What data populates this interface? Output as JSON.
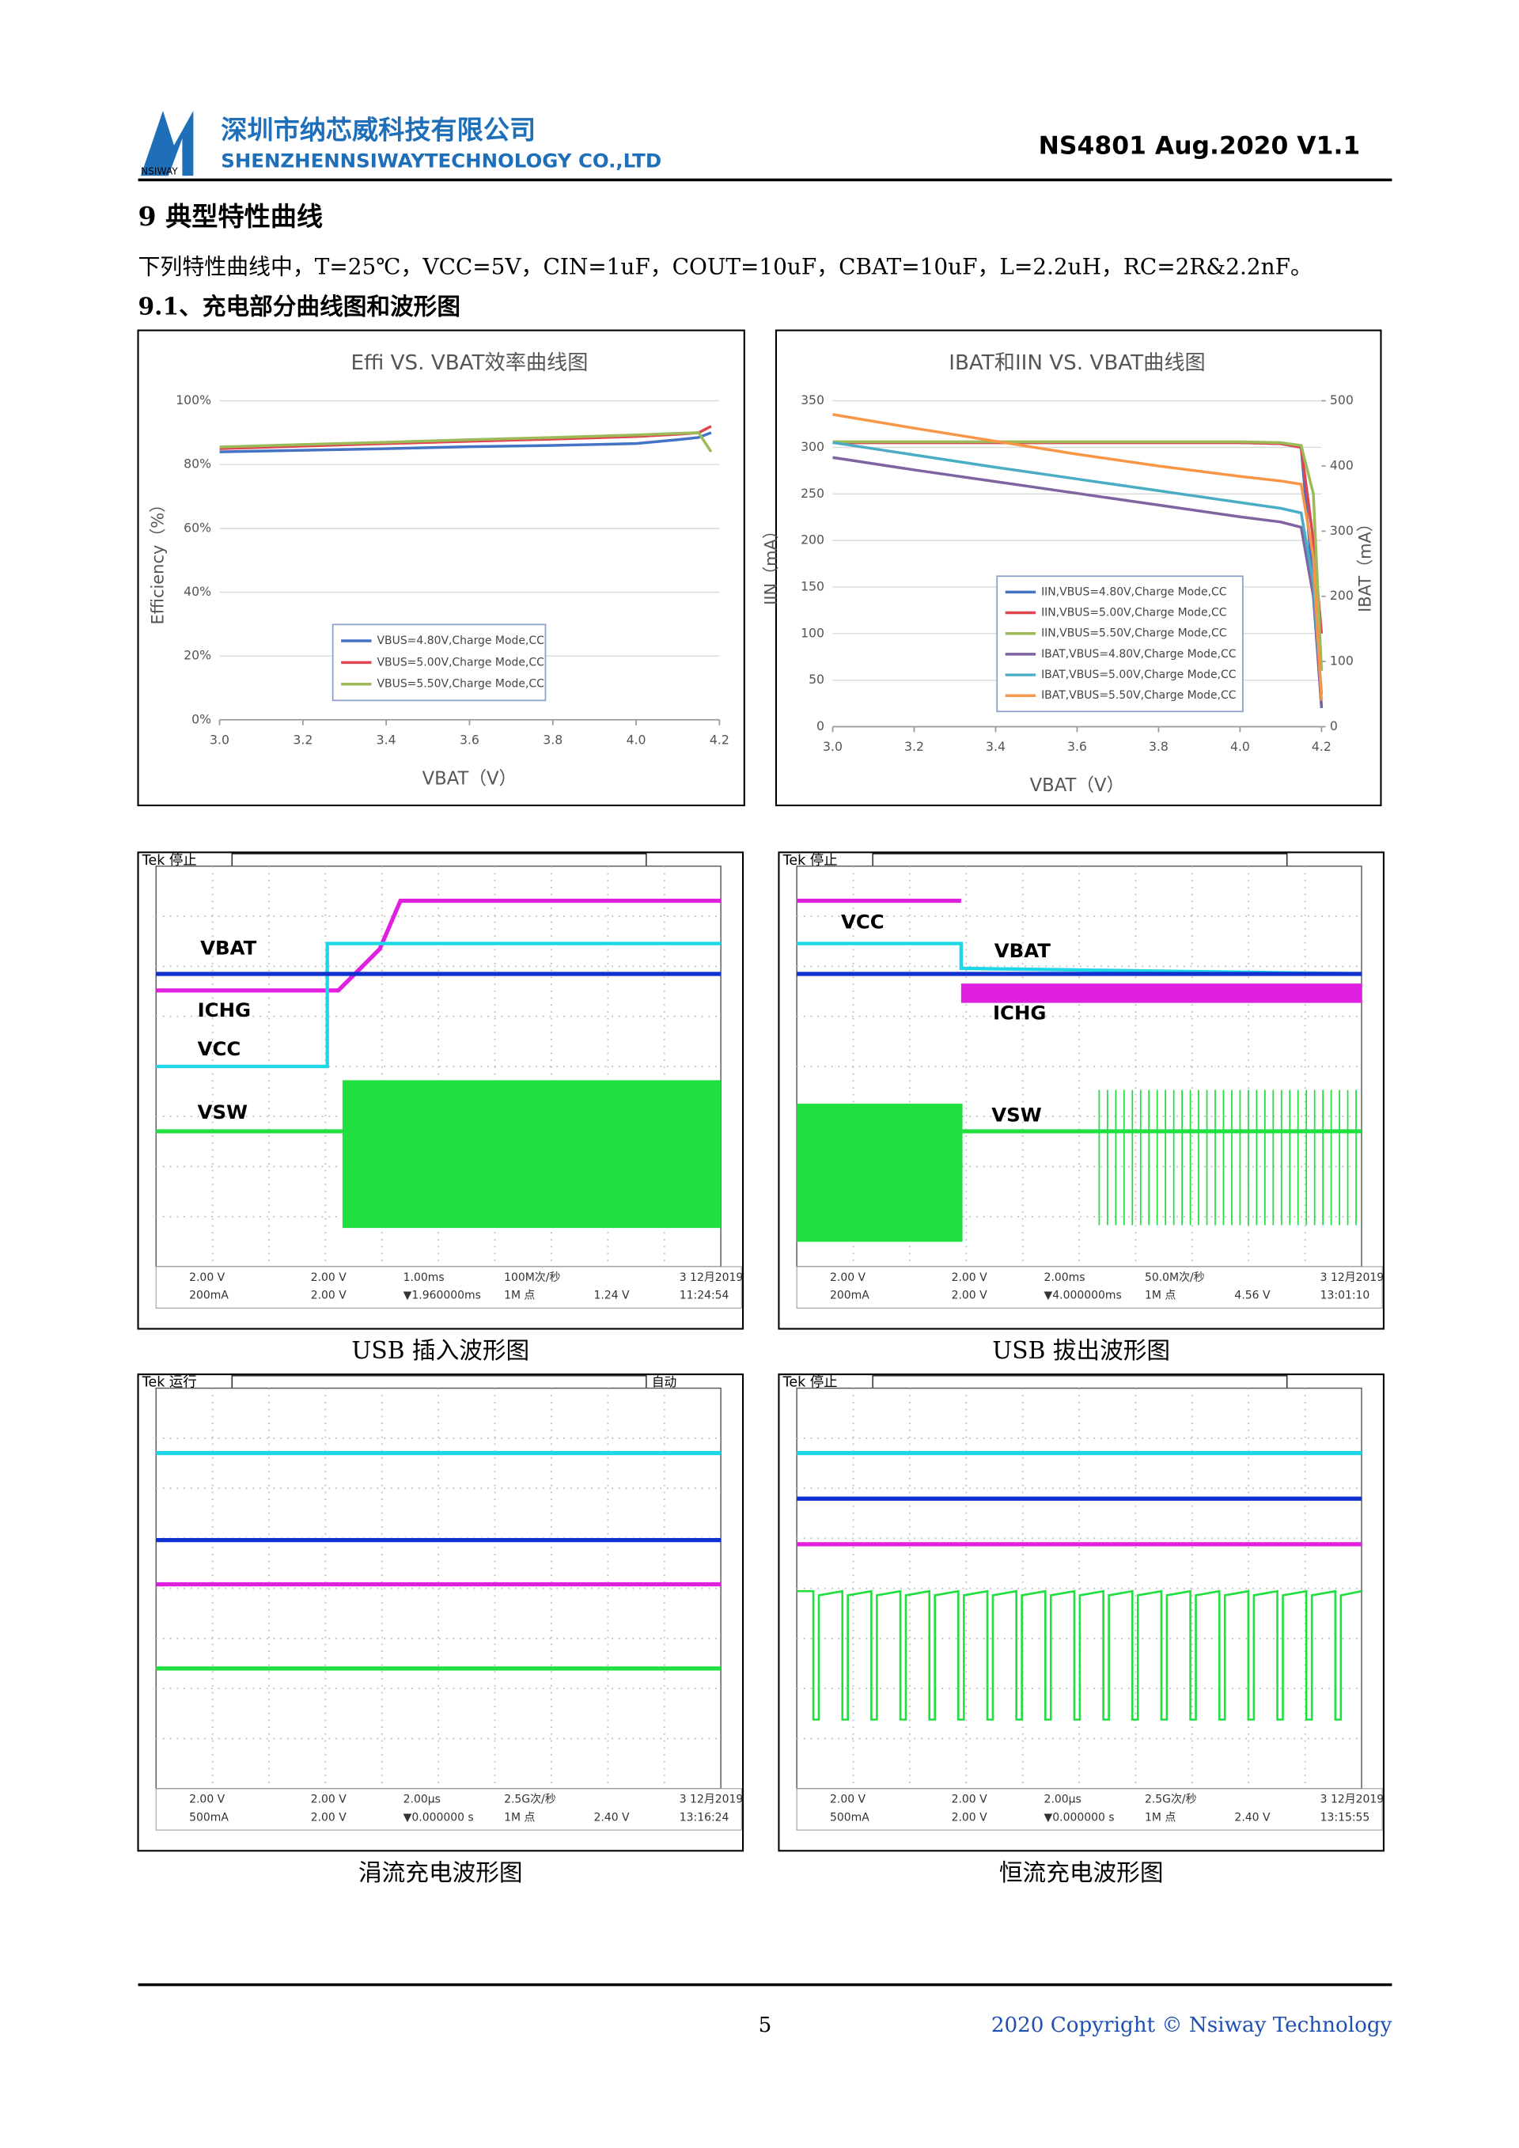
{
  "header": {
    "logo_text": "NSIWAY",
    "company_cn": "深圳市纳芯威科技有限公司",
    "company_en": "SHENZHENNSIWAYTECHNOLOGY CO.,LTD",
    "doc_id": "NS4801 Aug.2020 V1.1"
  },
  "section_title": "9  典型特性曲线",
  "conditions": "下列特性曲线中，T=25℃，VCC=5V，CIN=1uF，COUT=10uF，CBAT=10uF，L=2.2uH，RC=2R&2.2nF。",
  "subsection_title": "9.1、充电部分曲线图和波形图",
  "chart_data": [
    {
      "type": "line",
      "title": "Effi VS. VBAT效率曲线图",
      "x_label": "VBAT（V）",
      "y_label": "Efficiency（%）",
      "x": [
        3.0,
        3.2,
        3.4,
        3.6,
        3.8,
        4.0,
        4.1,
        4.15,
        4.18
      ],
      "xlim": [
        3.0,
        4.2
      ],
      "xticks": [
        {
          "value": 3,
          "label": "3.0"
        },
        3.2,
        3.4,
        3.6,
        3.8,
        {
          "value": 4,
          "label": "4.0"
        },
        4.2
      ],
      "ylim": [
        0,
        100
      ],
      "yticks": [
        {
          "value": 0,
          "label": "0%"
        },
        {
          "value": 20,
          "label": "20%"
        },
        {
          "value": 40,
          "label": "40%"
        },
        {
          "value": 60,
          "label": "60%"
        },
        {
          "value": 80,
          "label": "80%"
        },
        {
          "value": 100,
          "label": "100%"
        }
      ],
      "grid": true,
      "series": [
        {
          "name": "VBUS=4.80V,Charge Mode,CC",
          "color": "#4472c4",
          "values": [
            84,
            84.5,
            85,
            85.6,
            86,
            86.6,
            87.8,
            88.5,
            90
          ]
        },
        {
          "name": "VBUS=5.00V,Charge Mode,CC",
          "color": "#e0454f",
          "values": [
            85,
            85.8,
            86.6,
            87.3,
            88,
            88.8,
            89.5,
            90,
            92
          ]
        },
        {
          "name": "VBUS=5.50V,Charge Mode,CC",
          "color": "#9bbb59",
          "values": [
            85.5,
            86.3,
            87,
            87.8,
            88.5,
            89.3,
            89.8,
            90,
            84
          ]
        }
      ]
    },
    {
      "type": "line",
      "title": "IBAT和IIN VS. VBAT曲线图",
      "x_label": "VBAT（V）",
      "y_label": "IIN（mA）",
      "y2_label": "IBAT（mA）",
      "x": [
        3.0,
        3.2,
        3.4,
        3.6,
        3.8,
        4.0,
        4.1,
        4.15,
        4.18,
        4.2
      ],
      "xlim": [
        3.0,
        4.2
      ],
      "xticks": [
        {
          "value": 3,
          "label": "3.0"
        },
        3.2,
        3.4,
        3.6,
        3.8,
        {
          "value": 4,
          "label": "4.0"
        },
        4.2
      ],
      "ylim": [
        0,
        350
      ],
      "yticks": [
        0,
        50,
        100,
        150,
        200,
        250,
        300,
        350
      ],
      "y2lim": [
        0,
        500
      ],
      "y2ticks": [
        0,
        100,
        200,
        300,
        400,
        500
      ],
      "grid": true,
      "series": [
        {
          "name": "IIN,VBUS=4.80V,Charge Mode,CC",
          "color": "#4472c4",
          "values": [
            305,
            305,
            305,
            305,
            305,
            305,
            304,
            300,
            150,
            20
          ]
        },
        {
          "name": "IIN,VBUS=5.00V,Charge Mode,CC",
          "color": "#e0454f",
          "values": [
            305,
            305,
            305,
            305,
            305,
            305,
            304,
            300,
            200,
            100
          ]
        },
        {
          "name": "IIN,VBUS=5.50V,Charge Mode,CC",
          "color": "#9bbb59",
          "values": [
            306,
            306,
            306,
            306,
            306,
            306,
            305,
            302,
            250,
            60
          ]
        },
        {
          "name": "IBAT,VBUS=4.80V,Charge Mode,CC",
          "color": "#8064a2",
          "axis": "y2",
          "values": [
            413,
            394,
            376,
            358,
            340,
            322,
            314,
            306,
            200,
            30
          ]
        },
        {
          "name": "IBAT,VBUS=5.00V,Charge Mode,CC",
          "color": "#4bacc6",
          "axis": "y2",
          "values": [
            436,
            417,
            398,
            380,
            362,
            344,
            335,
            328,
            220,
            50
          ]
        },
        {
          "name": "IBAT,VBUS=5.50V,Charge Mode,CC",
          "color": "#f79646",
          "axis": "y2",
          "values": [
            479,
            458,
            438,
            418,
            400,
            384,
            377,
            372,
            260,
            40
          ]
        }
      ]
    }
  ],
  "scopes": [
    {
      "status": "Tek 停止",
      "labels": [
        "VBAT",
        "ICHG",
        "VCC",
        "VSW"
      ],
      "readouts": [
        "2.00 V",
        "200mA",
        "2.00 V",
        "2.00 V",
        "1.00ms",
        "▼1.960000ms",
        "100M次/秒",
        "1M 点",
        "1.24 V",
        "3 12月2019",
        "11:24:54"
      ],
      "caption": "USB 插入波形图"
    },
    {
      "status": "Tek 停止",
      "labels": [
        "VCC",
        "VBAT",
        "ICHG",
        "VSW"
      ],
      "readouts": [
        "2.00 V",
        "200mA",
        "2.00 V",
        "2.00 V",
        "2.00ms",
        "▼4.000000ms",
        "50.0M次/秒",
        "1M 点",
        "4.56 V",
        "3 12月2019",
        "13:01:10"
      ],
      "caption": "USB 拔出波形图"
    },
    {
      "status": "Tek 运行",
      "auto_label": "自动",
      "labels": [],
      "readouts": [
        "2.00 V",
        "500mA",
        "2.00 V",
        "2.00 V",
        "2.00µs",
        "▼0.000000 s",
        "2.5G次/秒",
        "1M 点",
        "2.40 V",
        "3 12月2019",
        "13:16:24"
      ],
      "caption": "涓流充电波形图"
    },
    {
      "status": "Tek 停止",
      "labels": [],
      "readouts": [
        "2.00 V",
        "500mA",
        "2.00 V",
        "2.00 V",
        "2.00µs",
        "▼0.000000 s",
        "2.5G次/秒",
        "1M 点",
        "2.40 V",
        "3 12月2019",
        "13:15:55"
      ],
      "caption": "恒流充电波形图"
    }
  ],
  "footer": {
    "page": "5",
    "copyright": "2020 Copyright © Nsiway Technology"
  }
}
